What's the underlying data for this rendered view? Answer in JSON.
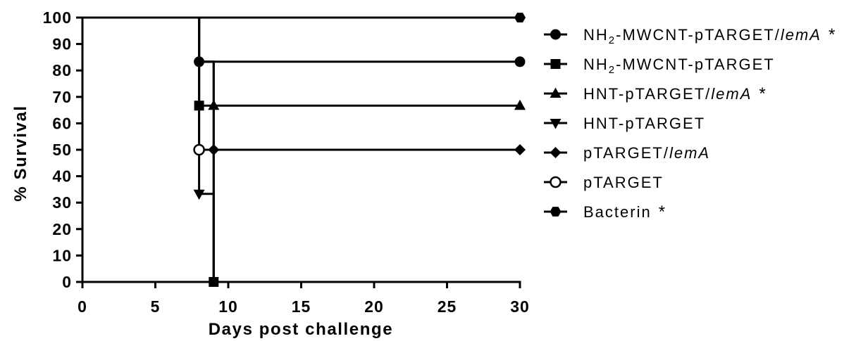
{
  "chart_data": {
    "type": "line",
    "curve": "step",
    "xlabel": "Days post challenge",
    "ylabel": "% Survival",
    "xlim": [
      0,
      30
    ],
    "ylim": [
      0,
      100
    ],
    "x_ticks": [
      0,
      5,
      10,
      15,
      20,
      25,
      30
    ],
    "y_ticks": [
      0,
      10,
      20,
      30,
      40,
      50,
      60,
      70,
      80,
      90,
      100
    ],
    "grid": false,
    "legend_position": "right",
    "line_color": "#000000",
    "series": [
      {
        "name": {
          "main": "NH",
          "sub": "2",
          "rest": "-MWCNT-pTARGET/",
          "italic": "lemA",
          "asterisk": "*"
        },
        "marker": "filled-circle",
        "x": [
          0,
          8,
          30
        ],
        "y": [
          100,
          83.3,
          83.3
        ],
        "marker_points": [
          [
            8,
            83.3
          ],
          [
            30,
            83.3
          ]
        ]
      },
      {
        "name": {
          "main": "NH",
          "sub": "2",
          "rest": "-MWCNT-pTARGET"
        },
        "marker": "filled-square",
        "x": [
          0,
          8,
          9
        ],
        "y": [
          100,
          66.7,
          0
        ],
        "marker_points": [
          [
            8,
            66.7
          ],
          [
            9,
            0
          ]
        ]
      },
      {
        "name": {
          "main": "HNT-pTARGET/",
          "italic": "lemA",
          "asterisk": "*"
        },
        "marker": "filled-triangle-up",
        "x": [
          0,
          8,
          9,
          30
        ],
        "y": [
          100,
          83.3,
          66.7,
          66.7
        ],
        "marker_points": [
          [
            9,
            66.7
          ],
          [
            30,
            66.7
          ]
        ]
      },
      {
        "name": {
          "main": "HNT-pTARGET"
        },
        "marker": "filled-triangle-down",
        "x": [
          0,
          8,
          9
        ],
        "y": [
          100,
          33.3,
          0
        ],
        "marker_points": [
          [
            8,
            33.3
          ]
        ]
      },
      {
        "name": {
          "main": "pTARGET/",
          "italic": "lemA"
        },
        "marker": "filled-diamond",
        "x": [
          0,
          8,
          9,
          30
        ],
        "y": [
          100,
          83.3,
          50,
          50
        ],
        "marker_points": [
          [
            9,
            50
          ],
          [
            30,
            50
          ]
        ]
      },
      {
        "name": {
          "main": "pTARGET"
        },
        "marker": "open-circle",
        "x": [
          0,
          8,
          9
        ],
        "y": [
          100,
          50,
          0
        ],
        "marker_points": [
          [
            8,
            50
          ]
        ]
      },
      {
        "name": {
          "main": "Bacterin",
          "asterisk": "*"
        },
        "marker": "filled-hexagon",
        "x": [
          0,
          30
        ],
        "y": [
          100,
          100
        ],
        "marker_points": [
          [
            30,
            100
          ]
        ]
      }
    ]
  }
}
